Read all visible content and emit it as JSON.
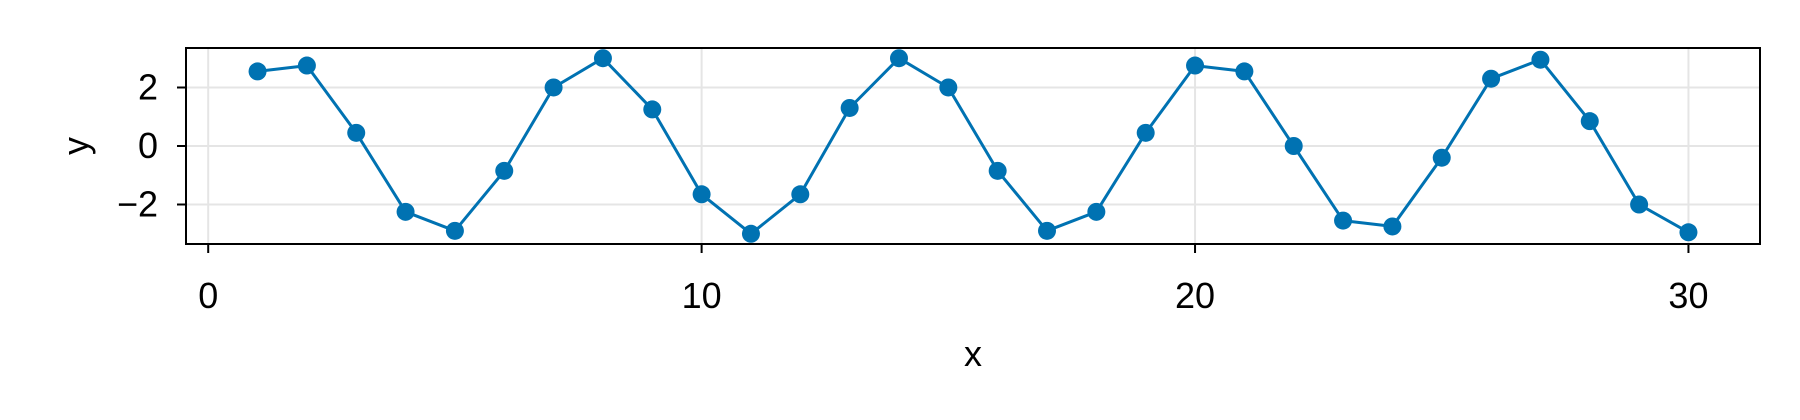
{
  "chart_data": {
    "type": "line",
    "xlabel": "x",
    "ylabel": "y",
    "xlim": [
      -0.45,
      31.45
    ],
    "ylim": [
      -3.35,
      3.35
    ],
    "xticks": [
      0,
      10,
      20,
      30
    ],
    "yticks": [
      2,
      0,
      -2
    ],
    "xtick_labels": [
      "0",
      "10",
      "20",
      "30"
    ],
    "ytick_labels": [
      "2",
      "0",
      "−2"
    ],
    "grid": true,
    "line_color": "#0072B2",
    "marker_color": "#0072B2",
    "grid_color": "#e5e5e5",
    "series": [
      {
        "x": [
          1,
          2,
          3,
          4,
          5,
          6,
          7,
          8,
          9,
          10,
          11,
          12,
          13,
          14,
          15,
          16,
          17,
          18,
          19,
          20,
          21,
          22,
          23,
          24,
          25,
          26,
          27,
          28,
          29,
          30
        ],
        "y": [
          2.55,
          2.75,
          0.45,
          -2.25,
          -2.9,
          -0.85,
          2.0,
          3.0,
          1.25,
          -1.65,
          -3.0,
          -1.65,
          1.3,
          3.0,
          2.0,
          -0.85,
          -2.9,
          -2.25,
          0.45,
          2.75,
          2.55,
          0.0,
          -2.55,
          -2.75,
          -0.4,
          2.3,
          2.95,
          0.85,
          -2.0,
          -2.95
        ]
      }
    ]
  }
}
